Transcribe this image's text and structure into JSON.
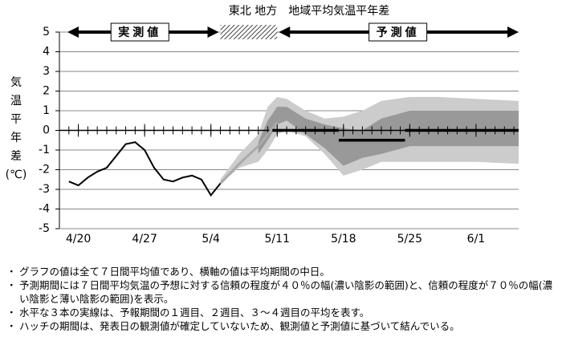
{
  "chart_data": {
    "type": "line",
    "title": "東北 地方　地域平均気温平年差",
    "ylabel_lines": [
      "気",
      "温",
      "平",
      "年",
      "差",
      "(℃)"
    ],
    "observed_label": "実測値",
    "forecast_label": "予測値",
    "hatch_period": [
      15,
      21
    ],
    "xlim": [
      -2,
      46.5
    ],
    "ylim": [
      -5,
      5
    ],
    "yticks": [
      -5,
      -4,
      -3,
      -2,
      -1,
      0,
      1,
      2,
      3,
      4,
      5
    ],
    "xticks": [
      {
        "value": 0,
        "label": "4/20"
      },
      {
        "value": 7,
        "label": "4/27"
      },
      {
        "value": 14,
        "label": "5/4"
      },
      {
        "value": 21,
        "label": "5/11"
      },
      {
        "value": 28,
        "label": "5/18"
      },
      {
        "value": 35,
        "label": "5/25"
      },
      {
        "value": 42,
        "label": "6/1"
      }
    ],
    "xminorticks": [
      -1,
      0,
      1,
      2,
      3,
      4,
      5,
      6,
      7,
      8,
      9,
      10,
      11,
      12,
      13,
      14,
      15,
      16,
      17,
      18,
      19,
      20,
      21,
      22,
      23,
      24,
      25,
      26,
      27,
      28,
      29,
      30,
      31,
      32,
      33,
      34,
      35,
      36,
      37,
      38,
      39,
      40,
      41,
      42,
      43,
      44,
      45,
      46
    ],
    "grid": true,
    "bands": [
      {
        "color": "#cccccc",
        "x": [
          15,
          17,
          19,
          20,
          21,
          22,
          24,
          26,
          28,
          30,
          32,
          35,
          38,
          42,
          46.5
        ],
        "low": [
          -2.7,
          -1.9,
          -1.6,
          -1.0,
          -0.2,
          0,
          -0.3,
          -1.2,
          -2.3,
          -2.0,
          -1.6,
          -1.6,
          -1.6,
          -1.6,
          -1.7
        ],
        "high": [
          -2.5,
          -1.2,
          -0.2,
          1.2,
          1.7,
          1.6,
          1.0,
          0.6,
          0.7,
          1.0,
          1.5,
          1.7,
          1.7,
          1.6,
          1.5
        ]
      },
      {
        "color": "#999999",
        "x": [
          19,
          20,
          21,
          22,
          24,
          26,
          28,
          30,
          32,
          35,
          38,
          42,
          46.5
        ],
        "low": [
          -1.2,
          -0.5,
          0.3,
          0.5,
          -0.2,
          -0.9,
          -1.8,
          -1.4,
          -1.2,
          -0.8,
          -0.8,
          -0.8,
          -0.8
        ],
        "high": [
          -0.6,
          0.5,
          1.2,
          1.2,
          0.6,
          0.3,
          0.1,
          0.0,
          0.6,
          1.0,
          1.0,
          1.0,
          1.0
        ]
      }
    ],
    "series": [
      {
        "color": "#aaaaaa",
        "x": [
          15,
          17,
          19,
          21
        ],
        "values": [
          -2.7,
          -1.7,
          -0.8,
          0.4
        ]
      },
      {
        "color": "#000000",
        "x": [
          -1,
          0,
          1,
          2,
          3,
          4,
          5,
          6,
          7,
          8,
          9,
          10,
          11,
          12,
          13,
          14,
          15
        ],
        "values": [
          -2.6,
          -2.8,
          -2.4,
          -2.1,
          -1.9,
          -1.3,
          -0.7,
          -0.6,
          -1.0,
          -1.9,
          -2.5,
          -2.6,
          -2.4,
          -2.3,
          -2.5,
          -3.3,
          -2.7
        ]
      }
    ],
    "weekly": {
      "x_start": [
        20.5,
        27.5,
        34.5
      ],
      "x_end": [
        27.5,
        34.5,
        46.5
      ],
      "values": [
        0,
        -0.5,
        0
      ]
    },
    "notes": [
      "グラフの値は全て７日間平均値であり、横軸の値は平均期間の中日。",
      "予測期間には７日間平均気温の予想に対する信頼の程度が４０％の幅(濃い陰影の範囲)と、信頼の程度が７０％の幅(濃い陰影と薄い陰影の範囲)を表示。",
      "水平な３本の実線は、予報期間の１週目、２週目、３～４週目の平均を表す。",
      "ハッチの期間は、発表日の観測値が確定していないため、観測値と予測値に基づいて結んでいる。"
    ]
  }
}
